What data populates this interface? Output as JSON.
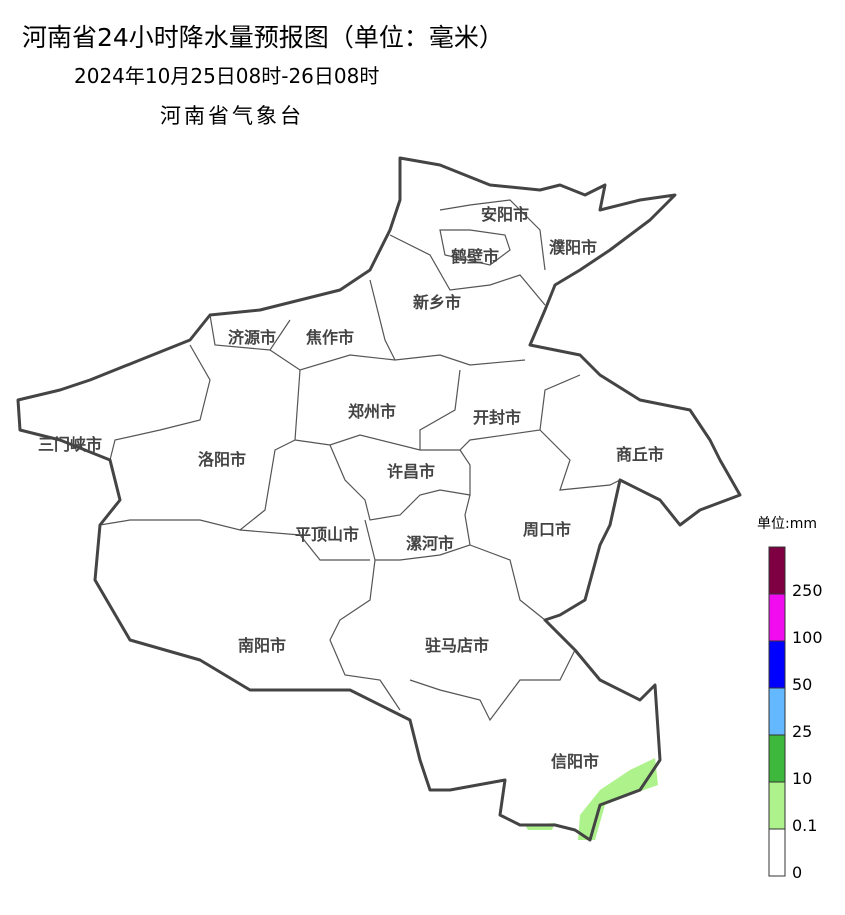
{
  "title": "河南省24小时降水量预报图（单位：毫米）",
  "subtitle": "2024年10月25日08时-26日08时",
  "issuer": "河南省气象台",
  "cities": [
    {
      "name": "安阳市"
    },
    {
      "name": "鹤壁市"
    },
    {
      "name": "濮阳市"
    },
    {
      "name": "新乡市"
    },
    {
      "name": "济源市"
    },
    {
      "name": "焦作市"
    },
    {
      "name": "郑州市"
    },
    {
      "name": "开封市"
    },
    {
      "name": "三门峡市"
    },
    {
      "name": "洛阳市"
    },
    {
      "name": "商丘市"
    },
    {
      "name": "许昌市"
    },
    {
      "name": "平顶山市"
    },
    {
      "name": "漯河市"
    },
    {
      "name": "周口市"
    },
    {
      "name": "南阳市"
    },
    {
      "name": "驻马店市"
    },
    {
      "name": "信阳市"
    }
  ],
  "rain_areas": [
    {
      "level": "0.1-10",
      "region": "信阳市南部",
      "color": "#aef28c"
    }
  ],
  "legend": {
    "title": "单位:mm",
    "bins": [
      {
        "label": "0",
        "color": "#ffffff"
      },
      {
        "label": "0.1",
        "color": "#aef28c"
      },
      {
        "label": "10",
        "color": "#3db83d"
      },
      {
        "label": "25",
        "color": "#63b8ff"
      },
      {
        "label": "50",
        "color": "#0000fe"
      },
      {
        "label": "100",
        "color": "#f00cee"
      },
      {
        "label": "250",
        "color": "#7e0043"
      }
    ]
  }
}
